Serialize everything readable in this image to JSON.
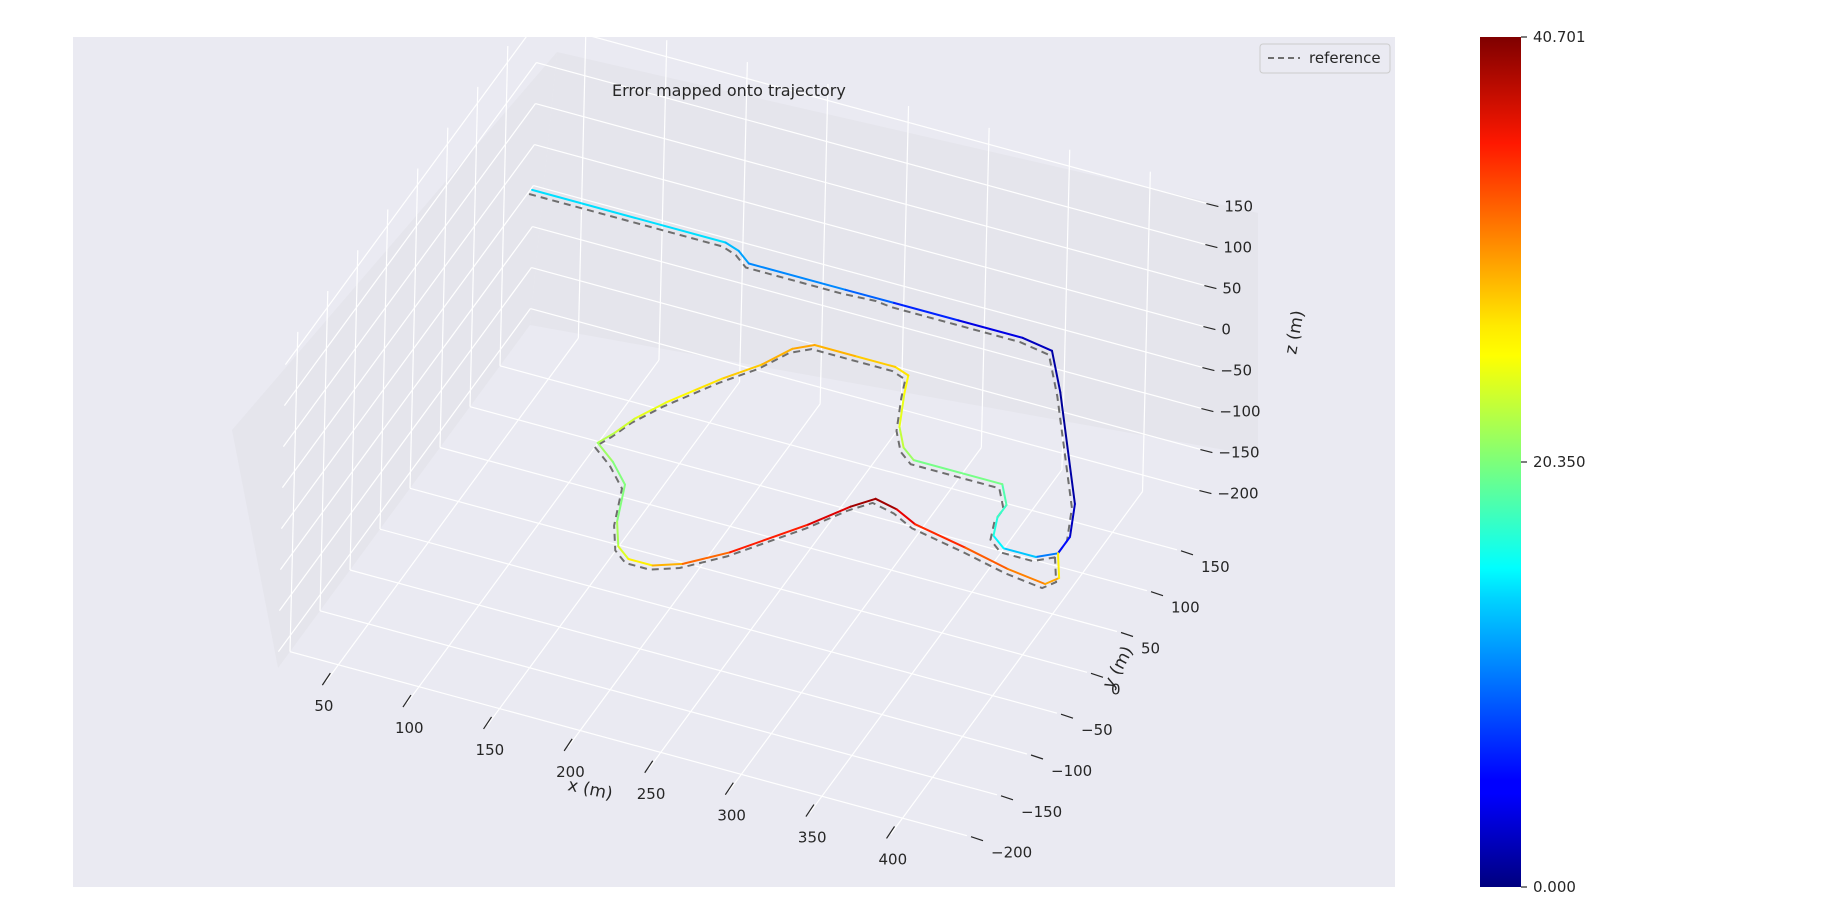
{
  "chart_data": {
    "type": "line",
    "title": "Error mapped onto trajectory",
    "xlabel": "x (m)",
    "ylabel": "y (m)",
    "zlabel": "z (m)",
    "projection": "3d",
    "grid": true,
    "legend": {
      "placement": "top-right",
      "entries": [
        "reference"
      ]
    },
    "xlim": [
      20,
      440
    ],
    "ylim": [
      -220,
      200
    ],
    "zlim": [
      -220,
      170
    ],
    "x_ticks": [
      "50",
      "100",
      "150",
      "200",
      "250",
      "300",
      "350",
      "400"
    ],
    "y_ticks": [
      "−200",
      "−150",
      "−100",
      "−50",
      "0",
      "50",
      "100",
      "150"
    ],
    "z_ticks": [
      "−200",
      "−150",
      "−100",
      "−50",
      "0",
      "50",
      "100",
      "150"
    ],
    "colorbar": {
      "colormap": "jet",
      "range": [
        0.0,
        40.701
      ],
      "tick_labels": [
        "0.000",
        "20.350",
        "40.701"
      ]
    },
    "series": [
      {
        "name": "reference",
        "style": "dashed",
        "color": "#6e6e6e",
        "points": [
          [
            30,
            165,
            -20
          ],
          [
            150,
            165,
            -20
          ],
          [
            160,
            160,
            -20
          ],
          [
            170,
            150,
            -20
          ],
          [
            230,
            150,
            -20
          ],
          [
            250,
            152,
            -20
          ],
          [
            260,
            150,
            -20
          ],
          [
            300,
            150,
            -20
          ],
          [
            340,
            150,
            -20
          ],
          [
            360,
            145,
            -20
          ],
          [
            380,
            105,
            -20
          ],
          [
            405,
            50,
            -20
          ],
          [
            430,
            -5,
            -20
          ],
          [
            440,
            -40,
            -20
          ],
          [
            440,
            -60,
            -20
          ],
          [
            430,
            -70,
            -20
          ],
          [
            410,
            -70,
            -20
          ],
          [
            400,
            -60,
            -20
          ],
          [
            395,
            -40,
            -20
          ],
          [
            395,
            -25,
            -20
          ],
          [
            385,
            -5,
            -20
          ],
          [
            330,
            -5,
            -20
          ],
          [
            320,
            5,
            -20
          ],
          [
            310,
            25,
            -20
          ],
          [
            300,
            60,
            -20
          ],
          [
            295,
            80,
            -20
          ],
          [
            285,
            85,
            -20
          ],
          [
            260,
            85,
            -20
          ],
          [
            235,
            85,
            -20
          ],
          [
            225,
            75,
            -20
          ],
          [
            215,
            50,
            -20
          ],
          [
            200,
            25,
            -20
          ],
          [
            190,
            5,
            -20
          ],
          [
            180,
            -15,
            -20
          ],
          [
            170,
            -40,
            -20
          ],
          [
            165,
            -60,
            -20
          ],
          [
            160,
            -75,
            -20
          ],
          [
            175,
            -90,
            -20
          ],
          [
            190,
            -110,
            -20
          ],
          [
            200,
            -150,
            -20
          ],
          [
            210,
            -175,
            -20
          ],
          [
            220,
            -185,
            -20
          ],
          [
            235,
            -185,
            -20
          ],
          [
            250,
            -175,
            -20
          ],
          [
            270,
            -150,
            -20
          ],
          [
            300,
            -100,
            -20
          ],
          [
            315,
            -70,
            -20
          ],
          [
            325,
            -55,
            -20
          ],
          [
            340,
            -60,
            -20
          ],
          [
            355,
            -70,
            -20
          ],
          [
            390,
            -80,
            -20
          ],
          [
            420,
            -90,
            -20
          ],
          [
            445,
            -95,
            -20
          ],
          [
            450,
            -85,
            -20
          ],
          [
            440,
            -60,
            -20
          ]
        ]
      },
      {
        "name": "",
        "style": "solid",
        "colored_by_error": true,
        "points": [
          [
            30,
            170,
            -20,
            15
          ],
          [
            150,
            170,
            -20,
            13
          ],
          [
            160,
            165,
            -20,
            12
          ],
          [
            170,
            155,
            -20,
            11
          ],
          [
            230,
            155,
            -20,
            10
          ],
          [
            260,
            155,
            -20,
            8
          ],
          [
            300,
            155,
            -20,
            5
          ],
          [
            340,
            155,
            -20,
            3
          ],
          [
            360,
            150,
            -20,
            2
          ],
          [
            380,
            110,
            -20,
            1
          ],
          [
            405,
            55,
            -20,
            1
          ],
          [
            430,
            0,
            -20,
            2
          ],
          [
            440,
            -35,
            -20,
            3
          ],
          [
            440,
            -55,
            -20,
            8
          ],
          [
            430,
            -65,
            -20,
            12
          ],
          [
            410,
            -65,
            -20,
            14
          ],
          [
            400,
            -55,
            -20,
            16
          ],
          [
            395,
            -35,
            -20,
            17
          ],
          [
            395,
            -20,
            -20,
            18
          ],
          [
            385,
            0,
            -20,
            19
          ],
          [
            330,
            0,
            -20,
            21
          ],
          [
            320,
            10,
            -20,
            22
          ],
          [
            310,
            30,
            -20,
            24
          ],
          [
            300,
            65,
            -20,
            25
          ],
          [
            295,
            85,
            -20,
            26
          ],
          [
            285,
            90,
            -20,
            27
          ],
          [
            260,
            90,
            -20,
            28
          ],
          [
            235,
            90,
            -20,
            29
          ],
          [
            225,
            80,
            -20,
            29
          ],
          [
            215,
            55,
            -20,
            28
          ],
          [
            200,
            30,
            -20,
            27
          ],
          [
            190,
            10,
            -20,
            26
          ],
          [
            180,
            -10,
            -20,
            25
          ],
          [
            170,
            -35,
            -20,
            24
          ],
          [
            165,
            -55,
            -20,
            23
          ],
          [
            160,
            -70,
            -20,
            22
          ],
          [
            175,
            -85,
            -20,
            21
          ],
          [
            190,
            -105,
            -20,
            20
          ],
          [
            200,
            -145,
            -20,
            21
          ],
          [
            210,
            -170,
            -20,
            23
          ],
          [
            220,
            -180,
            -20,
            25
          ],
          [
            235,
            -180,
            -20,
            27
          ],
          [
            250,
            -170,
            -20,
            30
          ],
          [
            270,
            -145,
            -20,
            33
          ],
          [
            300,
            -95,
            -20,
            36
          ],
          [
            315,
            -65,
            -20,
            38
          ],
          [
            325,
            -50,
            -20,
            40.7
          ],
          [
            340,
            -55,
            -20,
            38
          ],
          [
            355,
            -65,
            -20,
            35
          ],
          [
            390,
            -75,
            -20,
            33
          ],
          [
            420,
            -85,
            -20,
            31
          ],
          [
            445,
            -90,
            -20,
            30
          ],
          [
            450,
            -80,
            -20,
            28
          ],
          [
            440,
            -55,
            -20,
            24
          ]
        ]
      }
    ]
  }
}
